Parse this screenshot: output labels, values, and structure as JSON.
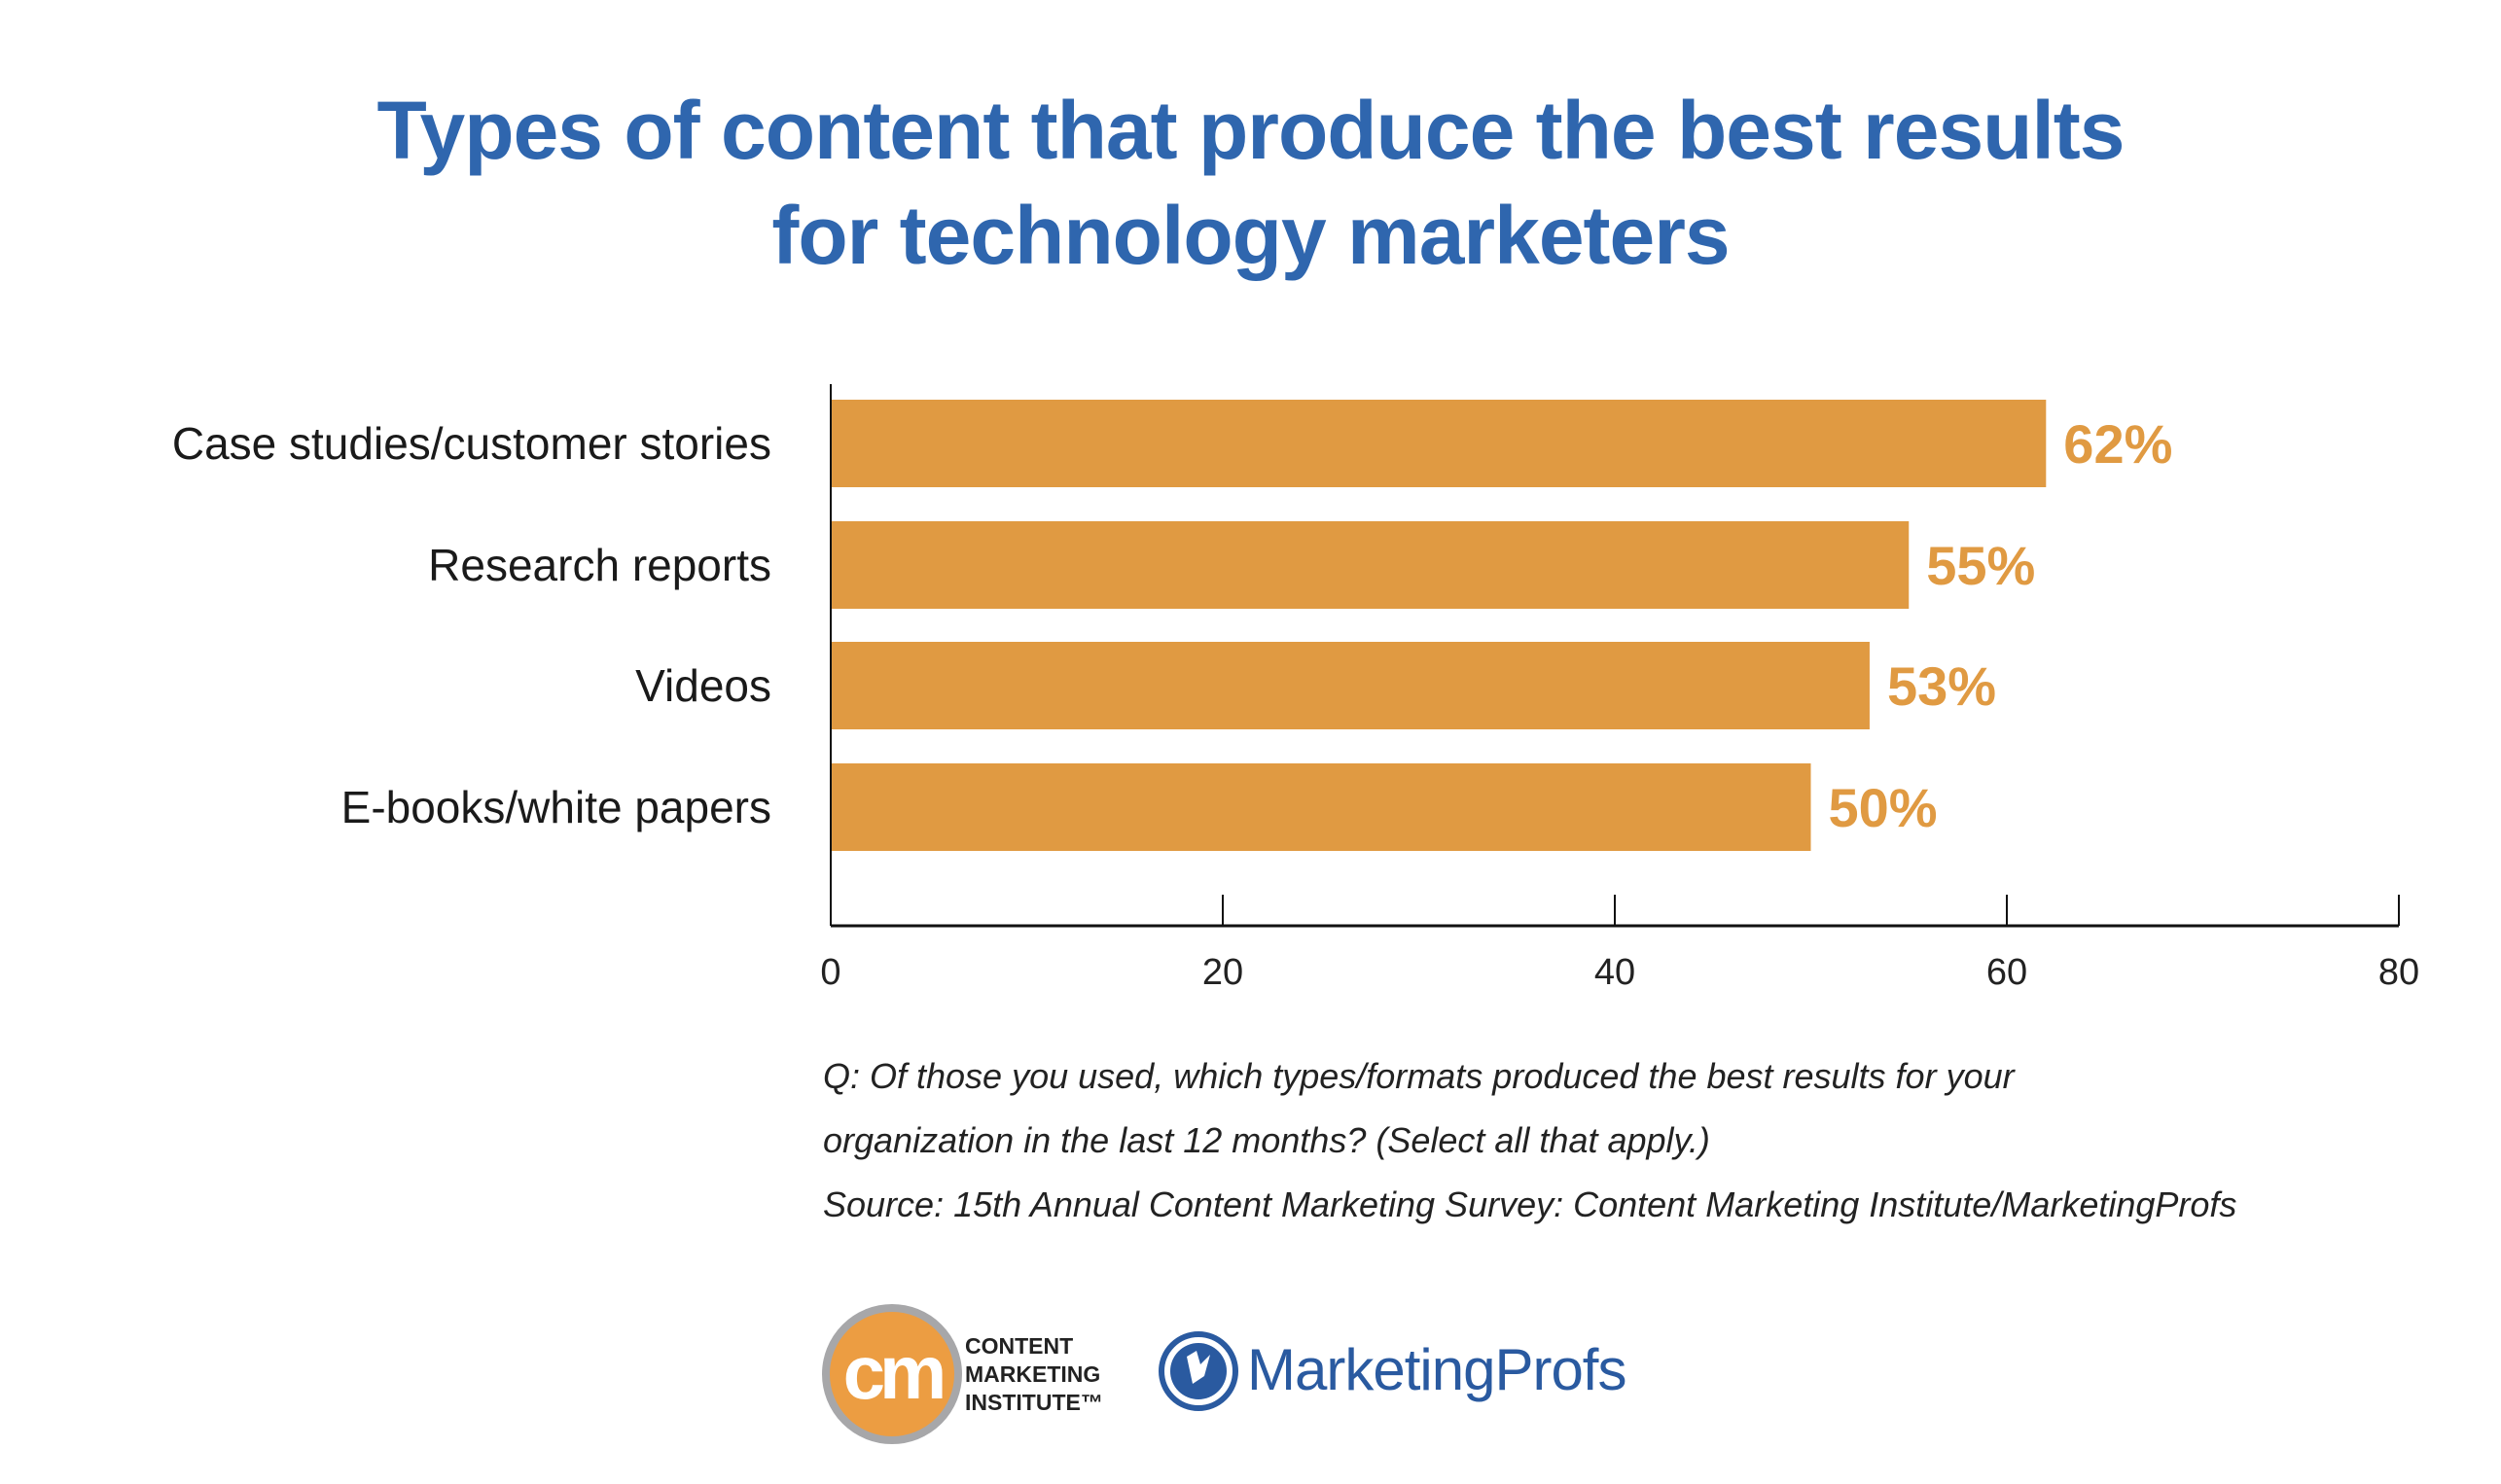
{
  "title_line1": "Types of content that produce the best results",
  "title_line2": "for technology marketers",
  "chart_data": {
    "type": "bar",
    "orientation": "horizontal",
    "categories": [
      "Case studies/customer stories",
      "Research reports",
      "Videos",
      "E-books/white papers"
    ],
    "values": [
      62,
      55,
      53,
      50
    ],
    "data_labels": [
      "62%",
      "55%",
      "53%",
      "50%"
    ],
    "xlim": [
      0,
      80
    ],
    "xticks": [
      0,
      20,
      40,
      60,
      80
    ],
    "xtick_labels": [
      "0",
      "20",
      "40",
      "60",
      "80"
    ],
    "grid": false,
    "bar_color": "#e09a42",
    "label_color": "#e09a42"
  },
  "notes": [
    "Q: Of those you used, which types/formats produced the best results for your",
    "organization in the last 12 months? (Select all that apply.)",
    "Source: 15th Annual Content Marketing Survey: Content Marketing Institute/MarketingProfs"
  ],
  "logos": {
    "cmi": {
      "mark": "cm",
      "lines": [
        "CONTENT",
        "MARKETING",
        "INSTITUTE™"
      ]
    },
    "marketingprofs": {
      "text": "MarketingProfs"
    }
  }
}
